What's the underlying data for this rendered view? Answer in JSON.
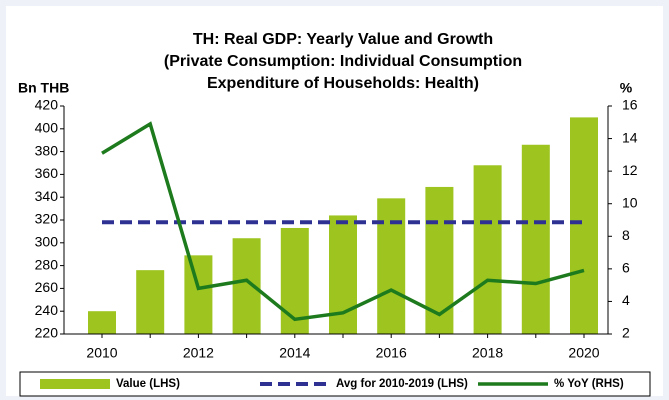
{
  "chart_data": {
    "type": "bar",
    "title": [
      "TH: Real GDP: Yearly Value and Growth",
      "(Private Consumption: Individual Consumption",
      "Expenditure of Households: Health)"
    ],
    "y_label": "Bn THB",
    "y2_label": "%",
    "categories": [
      "2010",
      null,
      "2012",
      null,
      "2014",
      null,
      "2016",
      null,
      "2018",
      null,
      "2020"
    ],
    "series": [
      {
        "name": "Value (LHS)",
        "type": "bar",
        "color": "#9dc41f",
        "axis": "y",
        "values": [
          240,
          276,
          289,
          304,
          313,
          324,
          339,
          349,
          368,
          386,
          410
        ]
      },
      {
        "name": "Avg for 2010-2019 (LHS)",
        "type": "line",
        "dashed": true,
        "color": "#2e3192",
        "axis": "y",
        "values": [
          318,
          318,
          318,
          318,
          318,
          318,
          318,
          318,
          318,
          318,
          318
        ]
      },
      {
        "name": "% YoY (RHS)",
        "type": "line",
        "dashed": false,
        "color": "#1d7a1d",
        "axis": "y2",
        "values": [
          13.1,
          14.9,
          4.8,
          5.3,
          2.9,
          3.3,
          4.7,
          3.2,
          5.3,
          5.1,
          5.9
        ]
      }
    ],
    "ylim": [
      220,
      420
    ],
    "yticks": [
      220,
      240,
      260,
      280,
      300,
      320,
      340,
      360,
      380,
      400,
      420
    ],
    "y2lim": [
      2,
      16
    ],
    "y2ticks": [
      2,
      4,
      6,
      8,
      10,
      12,
      14,
      16
    ],
    "legend": "bottom"
  }
}
